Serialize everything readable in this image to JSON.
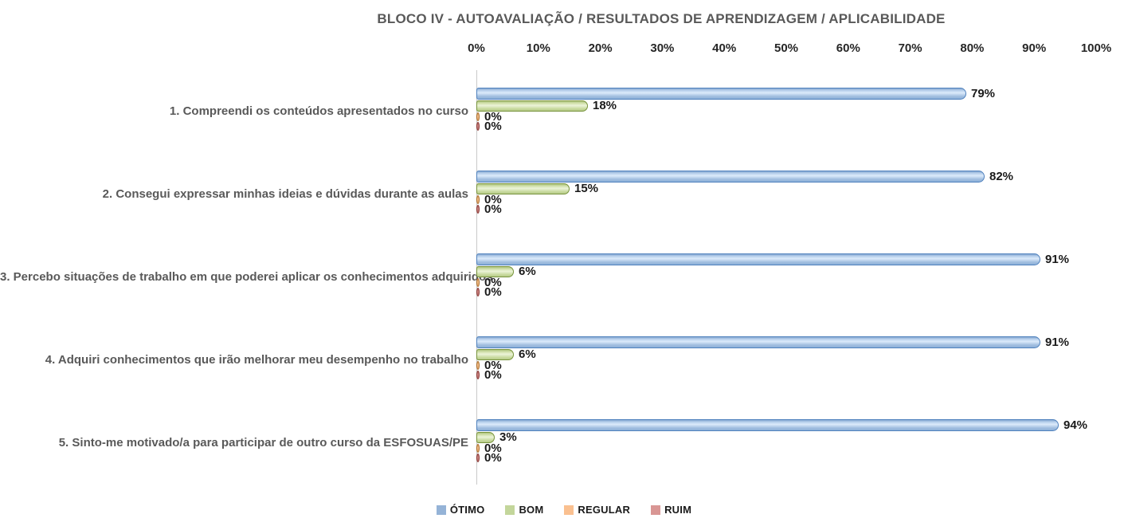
{
  "chart_data": {
    "type": "bar",
    "orientation": "horizontal",
    "title": "BLOCO IV - AUTOAVALIAÇÃO / RESULTADOS DE APRENDIZAGEM / APLICABILIDADE",
    "categories": [
      "1. Compreendi os conteúdos apresentados no curso",
      "2. Consegui expressar minhas ideias e dúvidas durante as aulas",
      "3. Percebo situações de trabalho em que poderei aplicar os conhecimentos adquiridos",
      "4. Adquiri conhecimentos que irão melhorar meu desempenho no trabalho",
      "5. Sinto-me motivado/a para participar de outro curso da ESFOSUAS/PE"
    ],
    "series": [
      {
        "name": "ÓTIMO",
        "values": [
          79,
          82,
          91,
          91,
          94
        ],
        "labels": [
          "79%",
          "82%",
          "91%",
          "91%",
          "94%"
        ],
        "color": "#95B3D7",
        "border_color": "#4F81BD"
      },
      {
        "name": "BOM",
        "values": [
          18,
          15,
          6,
          6,
          3
        ],
        "labels": [
          "18%",
          "15%",
          "6%",
          "6%",
          "3%"
        ],
        "color": "#C3D69B",
        "border_color": "#77933C"
      },
      {
        "name": "REGULAR",
        "values": [
          0,
          0,
          0,
          0,
          0
        ],
        "labels": [
          "0%",
          "0%",
          "0%",
          "0%",
          "0%"
        ],
        "color": "#FAC090",
        "border_color": "#E26B0A"
      },
      {
        "name": "RUIM",
        "values": [
          0,
          0,
          0,
          0,
          0
        ],
        "labels": [
          "0%",
          "0%",
          "0%",
          "0%",
          "0%"
        ],
        "color": "#D99694",
        "border_color": "#953735"
      }
    ],
    "x_ticks": [
      "0%",
      "10%",
      "20%",
      "30%",
      "40%",
      "50%",
      "60%",
      "70%",
      "80%",
      "90%",
      "100%"
    ],
    "xlim": [
      0,
      100
    ],
    "xlabel": "",
    "ylabel": "",
    "grid": false,
    "legend_position": "bottom",
    "text_colors": {
      "title": "#595959",
      "category": "#595959",
      "tick": "#262626",
      "data_label": "#1A1A1A"
    }
  }
}
